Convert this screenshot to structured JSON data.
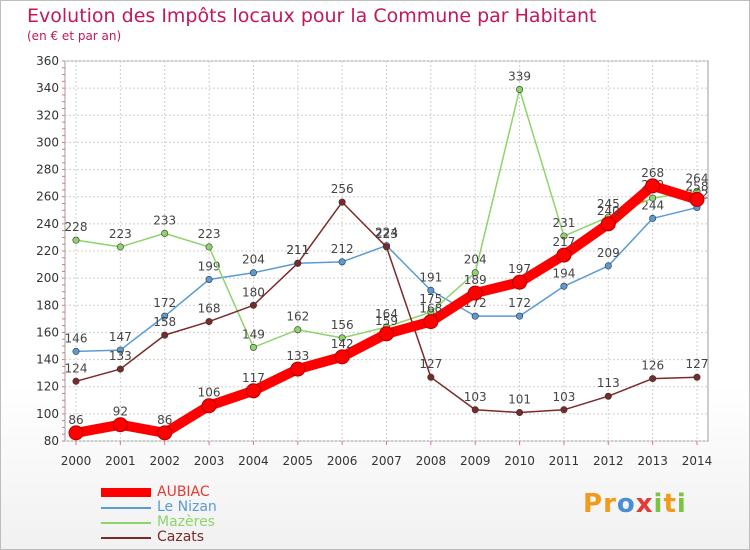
{
  "chart_data": {
    "type": "line",
    "title": "Evolution des Impôts locaux pour la Commune par Habitant",
    "subtitle": "(en € et par an)",
    "x": [
      "2000",
      "2001",
      "2002",
      "2003",
      "2004",
      "2005",
      "2006",
      "2007",
      "2008",
      "2009",
      "2010",
      "2011",
      "2012",
      "2013",
      "2014"
    ],
    "ylim": [
      80,
      360
    ],
    "yticks": [
      80,
      100,
      120,
      140,
      160,
      180,
      200,
      220,
      240,
      260,
      280,
      300,
      320,
      340,
      360
    ],
    "grid": true,
    "legend_position": "bottom-left",
    "series": [
      {
        "name": "AUBIAC",
        "color": "#ff0000",
        "values": [
          86,
          92,
          86,
          106,
          117,
          133,
          142,
          159,
          168,
          189,
          197,
          217,
          240,
          268,
          258
        ]
      },
      {
        "name": "Le Nizan",
        "color": "#5b9bd5",
        "values": [
          146,
          147,
          172,
          199,
          204,
          211,
          212,
          224,
          191,
          172,
          172,
          194,
          209,
          244,
          252
        ]
      },
      {
        "name": "Mazères",
        "color": "#8ed46a",
        "values": [
          228,
          223,
          233,
          223,
          149,
          162,
          156,
          164,
          175,
          204,
          339,
          231,
          245,
          259,
          264
        ]
      },
      {
        "name": "Cazats",
        "color": "#7b2a2a",
        "values": [
          124,
          133,
          158,
          168,
          180,
          211,
          256,
          223,
          127,
          103,
          101,
          103,
          113,
          126,
          127
        ]
      }
    ]
  },
  "brand": {
    "letters": [
      "P",
      "r",
      "o",
      "x",
      "i",
      "t",
      "i"
    ],
    "colors": [
      "#f29a1a",
      "#f29a1a",
      "#4a8fd4",
      "#e53935",
      "#7cc243",
      "#f29a1a",
      "#7cc243"
    ]
  }
}
